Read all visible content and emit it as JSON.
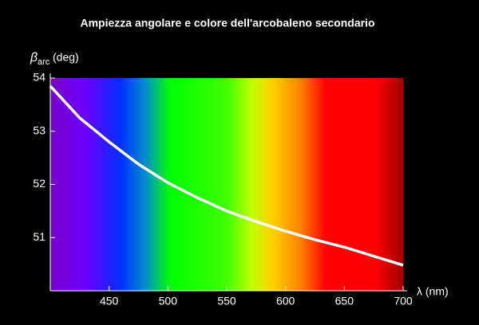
{
  "chart_data": {
    "type": "line",
    "title": "Ampiezza angolare e colore dell'arcobaleno secondario",
    "y_label_symbol": "β",
    "y_label_subscript": "arc",
    "y_label_unit": "(deg)",
    "x_label": "λ (nm)",
    "x": [
      400,
      425,
      450,
      475,
      500,
      525,
      550,
      575,
      600,
      625,
      650,
      675,
      700
    ],
    "series": [
      {
        "name": "β",
        "color": "#ffffff",
        "values": [
          53.85,
          53.25,
          52.8,
          52.38,
          52.03,
          51.75,
          51.5,
          51.3,
          51.12,
          50.96,
          50.82,
          50.65,
          50.48
        ]
      }
    ],
    "xlim": [
      400,
      700
    ],
    "xticks": [
      450,
      500,
      550,
      600,
      650,
      700
    ],
    "ylim": [
      50,
      54
    ],
    "yticks": [
      51,
      52,
      53,
      54
    ]
  }
}
